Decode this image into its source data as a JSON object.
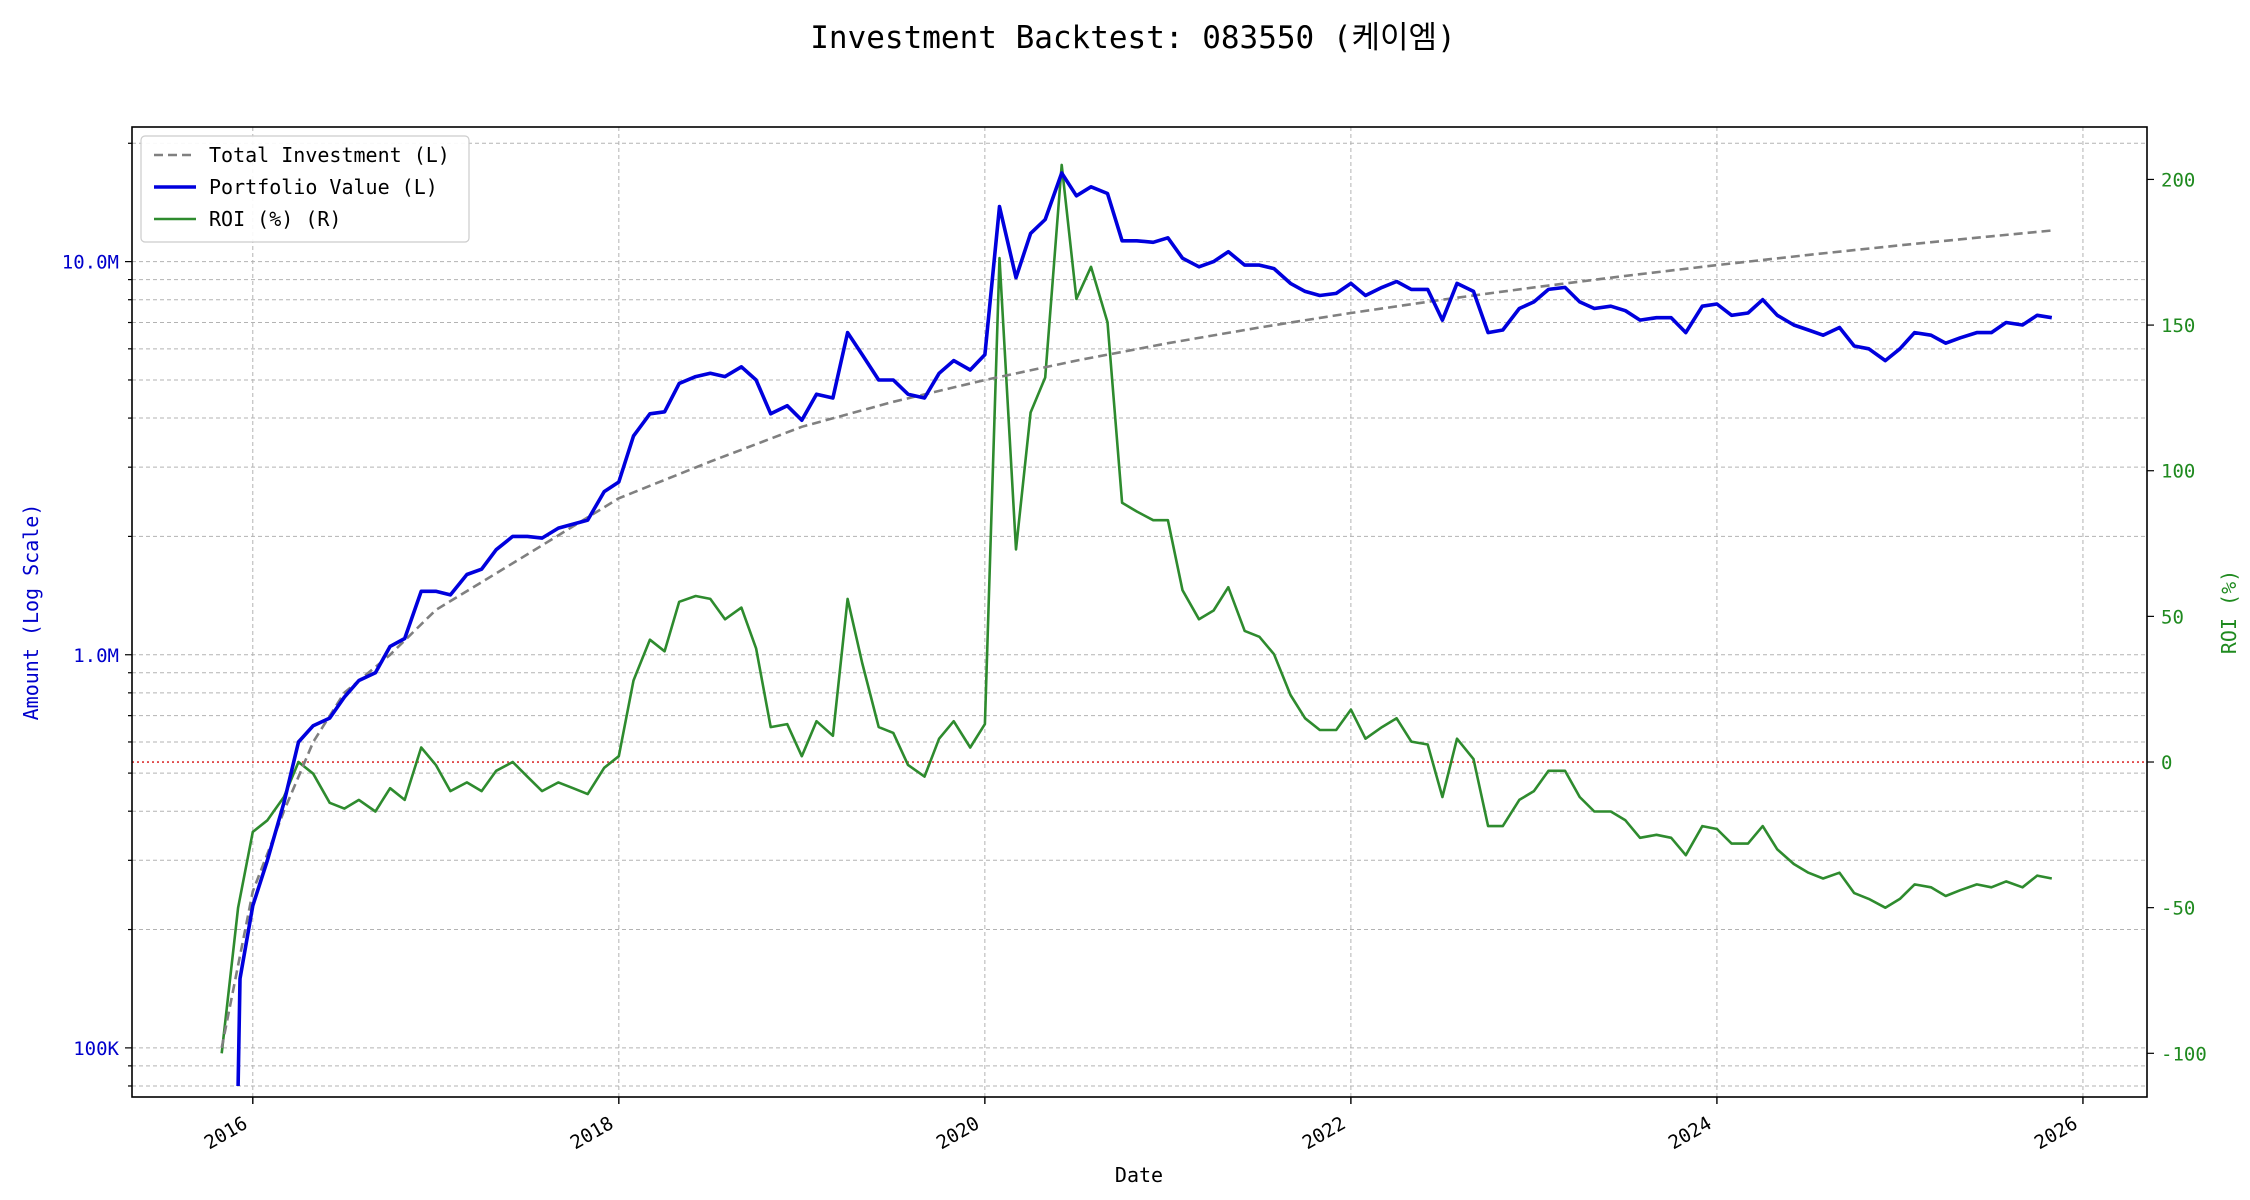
{
  "chart_data": {
    "type": "line",
    "title": "Investment Backtest: 083550 (케이엠)",
    "xlabel": "Date",
    "ylabel_left": "Amount (Log Scale)",
    "ylabel_right": "ROI (%)",
    "x_range": [
      2015.34,
      2026.35
    ],
    "x_ticks": [
      2016,
      2018,
      2020,
      2022,
      2024,
      2026
    ],
    "y_left": {
      "scale": "log",
      "range": [
        75000,
        22000000
      ],
      "ticks": [
        100000,
        1000000,
        10000000
      ],
      "tick_labels": [
        "100K",
        "1.0M",
        "10.0M"
      ]
    },
    "y_right": {
      "scale": "linear",
      "range": [
        -115,
        218
      ],
      "ticks": [
        -100,
        -50,
        0,
        50,
        100,
        150,
        200
      ]
    },
    "zero_line": 0,
    "grid": true,
    "legend_position": "top-left",
    "colors": {
      "total_investment": "#808080",
      "portfolio": "#0000dd",
      "roi": "#2e8b2e",
      "zero_line": "#dd3333"
    },
    "series": [
      {
        "key": "total_investment",
        "name": "Total Investment (L)",
        "axis": "left",
        "style": "dashed",
        "points": [
          [
            2015.83,
            100000
          ],
          [
            2016.0,
            250000
          ],
          [
            2016.17,
            400000
          ],
          [
            2016.33,
            600000
          ],
          [
            2016.5,
            800000
          ],
          [
            2016.75,
            1000000
          ],
          [
            2017.0,
            1300000
          ],
          [
            2017.5,
            1800000
          ],
          [
            2018.0,
            2500000
          ],
          [
            2018.5,
            3100000
          ],
          [
            2019.0,
            3800000
          ],
          [
            2019.5,
            4400000
          ],
          [
            2020.0,
            5000000
          ],
          [
            2020.5,
            5600000
          ],
          [
            2021.0,
            6200000
          ],
          [
            2021.5,
            6800000
          ],
          [
            2022.0,
            7400000
          ],
          [
            2022.5,
            8000000
          ],
          [
            2023.0,
            8600000
          ],
          [
            2023.5,
            9200000
          ],
          [
            2024.0,
            9800000
          ],
          [
            2024.5,
            10400000
          ],
          [
            2025.0,
            11000000
          ],
          [
            2025.5,
            11600000
          ],
          [
            2025.83,
            12000000
          ]
        ]
      },
      {
        "key": "portfolio",
        "name": "Portfolio Value (L)",
        "axis": "left",
        "style": "solid",
        "points": [
          [
            2015.92,
            80000
          ],
          [
            2015.93,
            150000
          ],
          [
            2016.0,
            230000
          ],
          [
            2016.08,
            300000
          ],
          [
            2016.17,
            420000
          ],
          [
            2016.25,
            600000
          ],
          [
            2016.33,
            660000
          ],
          [
            2016.42,
            690000
          ],
          [
            2016.5,
            780000
          ],
          [
            2016.58,
            860000
          ],
          [
            2016.67,
            900000
          ],
          [
            2016.75,
            1050000
          ],
          [
            2016.83,
            1100000
          ],
          [
            2016.92,
            1450000
          ],
          [
            2017.0,
            1450000
          ],
          [
            2017.08,
            1420000
          ],
          [
            2017.17,
            1600000
          ],
          [
            2017.25,
            1650000
          ],
          [
            2017.33,
            1850000
          ],
          [
            2017.42,
            2000000
          ],
          [
            2017.5,
            2000000
          ],
          [
            2017.58,
            1980000
          ],
          [
            2017.67,
            2100000
          ],
          [
            2017.75,
            2150000
          ],
          [
            2017.83,
            2200000
          ],
          [
            2017.92,
            2600000
          ],
          [
            2018.0,
            2750000
          ],
          [
            2018.08,
            3600000
          ],
          [
            2018.17,
            4100000
          ],
          [
            2018.25,
            4150000
          ],
          [
            2018.33,
            4900000
          ],
          [
            2018.42,
            5100000
          ],
          [
            2018.5,
            5200000
          ],
          [
            2018.58,
            5100000
          ],
          [
            2018.67,
            5400000
          ],
          [
            2018.75,
            5000000
          ],
          [
            2018.83,
            4100000
          ],
          [
            2018.92,
            4300000
          ],
          [
            2019.0,
            3950000
          ],
          [
            2019.08,
            4600000
          ],
          [
            2019.17,
            4500000
          ],
          [
            2019.25,
            6600000
          ],
          [
            2019.33,
            5800000
          ],
          [
            2019.42,
            5000000
          ],
          [
            2019.5,
            5000000
          ],
          [
            2019.58,
            4600000
          ],
          [
            2019.67,
            4500000
          ],
          [
            2019.75,
            5200000
          ],
          [
            2019.83,
            5600000
          ],
          [
            2019.92,
            5300000
          ],
          [
            2020.0,
            5800000
          ],
          [
            2020.08,
            13800000
          ],
          [
            2020.17,
            9100000
          ],
          [
            2020.25,
            11800000
          ],
          [
            2020.33,
            12800000
          ],
          [
            2020.42,
            16800000
          ],
          [
            2020.5,
            14700000
          ],
          [
            2020.58,
            15500000
          ],
          [
            2020.67,
            14900000
          ],
          [
            2020.75,
            11300000
          ],
          [
            2020.83,
            11300000
          ],
          [
            2020.92,
            11200000
          ],
          [
            2021.0,
            11500000
          ],
          [
            2021.08,
            10200000
          ],
          [
            2021.17,
            9700000
          ],
          [
            2021.25,
            10000000
          ],
          [
            2021.33,
            10600000
          ],
          [
            2021.42,
            9800000
          ],
          [
            2021.5,
            9800000
          ],
          [
            2021.58,
            9600000
          ],
          [
            2021.67,
            8800000
          ],
          [
            2021.75,
            8400000
          ],
          [
            2021.83,
            8200000
          ],
          [
            2021.92,
            8300000
          ],
          [
            2022.0,
            8800000
          ],
          [
            2022.08,
            8200000
          ],
          [
            2022.17,
            8600000
          ],
          [
            2022.25,
            8900000
          ],
          [
            2022.33,
            8500000
          ],
          [
            2022.42,
            8500000
          ],
          [
            2022.5,
            7100000
          ],
          [
            2022.58,
            8800000
          ],
          [
            2022.67,
            8400000
          ],
          [
            2022.75,
            6600000
          ],
          [
            2022.83,
            6700000
          ],
          [
            2022.92,
            7600000
          ],
          [
            2023.0,
            7900000
          ],
          [
            2023.08,
            8500000
          ],
          [
            2023.17,
            8600000
          ],
          [
            2023.25,
            7900000
          ],
          [
            2023.33,
            7600000
          ],
          [
            2023.42,
            7700000
          ],
          [
            2023.5,
            7500000
          ],
          [
            2023.58,
            7100000
          ],
          [
            2023.67,
            7200000
          ],
          [
            2023.75,
            7200000
          ],
          [
            2023.83,
            6600000
          ],
          [
            2023.92,
            7700000
          ],
          [
            2024.0,
            7800000
          ],
          [
            2024.08,
            7300000
          ],
          [
            2024.17,
            7400000
          ],
          [
            2024.25,
            8000000
          ],
          [
            2024.33,
            7300000
          ],
          [
            2024.42,
            6900000
          ],
          [
            2024.5,
            6700000
          ],
          [
            2024.58,
            6500000
          ],
          [
            2024.67,
            6800000
          ],
          [
            2024.75,
            6100000
          ],
          [
            2024.83,
            6000000
          ],
          [
            2024.92,
            5600000
          ],
          [
            2025.0,
            6000000
          ],
          [
            2025.08,
            6600000
          ],
          [
            2025.17,
            6500000
          ],
          [
            2025.25,
            6200000
          ],
          [
            2025.33,
            6400000
          ],
          [
            2025.42,
            6600000
          ],
          [
            2025.5,
            6600000
          ],
          [
            2025.58,
            7000000
          ],
          [
            2025.67,
            6900000
          ],
          [
            2025.75,
            7300000
          ],
          [
            2025.83,
            7200000
          ]
        ]
      },
      {
        "key": "roi",
        "name": "ROI (%) (R)",
        "axis": "right",
        "style": "solid",
        "points": [
          [
            2015.83,
            -100
          ],
          [
            2015.92,
            -50
          ],
          [
            2016.0,
            -24
          ],
          [
            2016.08,
            -20
          ],
          [
            2016.17,
            -12
          ],
          [
            2016.25,
            0
          ],
          [
            2016.33,
            -4
          ],
          [
            2016.42,
            -14
          ],
          [
            2016.5,
            -16
          ],
          [
            2016.58,
            -13
          ],
          [
            2016.67,
            -17
          ],
          [
            2016.75,
            -9
          ],
          [
            2016.83,
            -13
          ],
          [
            2016.92,
            5
          ],
          [
            2017.0,
            -1
          ],
          [
            2017.08,
            -10
          ],
          [
            2017.17,
            -7
          ],
          [
            2017.25,
            -10
          ],
          [
            2017.33,
            -3
          ],
          [
            2017.42,
            0
          ],
          [
            2017.5,
            -5
          ],
          [
            2017.58,
            -10
          ],
          [
            2017.67,
            -7
          ],
          [
            2017.75,
            -9
          ],
          [
            2017.83,
            -11
          ],
          [
            2017.92,
            -2
          ],
          [
            2018.0,
            2
          ],
          [
            2018.08,
            28
          ],
          [
            2018.17,
            42
          ],
          [
            2018.25,
            38
          ],
          [
            2018.33,
            55
          ],
          [
            2018.42,
            57
          ],
          [
            2018.5,
            56
          ],
          [
            2018.58,
            49
          ],
          [
            2018.67,
            53
          ],
          [
            2018.75,
            39
          ],
          [
            2018.83,
            12
          ],
          [
            2018.92,
            13
          ],
          [
            2019.0,
            2
          ],
          [
            2019.08,
            14
          ],
          [
            2019.17,
            9
          ],
          [
            2019.25,
            56
          ],
          [
            2019.33,
            34
          ],
          [
            2019.42,
            12
          ],
          [
            2019.5,
            10
          ],
          [
            2019.58,
            -1
          ],
          [
            2019.67,
            -5
          ],
          [
            2019.75,
            8
          ],
          [
            2019.83,
            14
          ],
          [
            2019.92,
            5
          ],
          [
            2020.0,
            13
          ],
          [
            2020.08,
            173
          ],
          [
            2020.17,
            73
          ],
          [
            2020.25,
            120
          ],
          [
            2020.33,
            132
          ],
          [
            2020.42,
            205
          ],
          [
            2020.5,
            159
          ],
          [
            2020.58,
            170
          ],
          [
            2020.67,
            151
          ],
          [
            2020.75,
            89
          ],
          [
            2020.83,
            86
          ],
          [
            2020.92,
            83
          ],
          [
            2021.0,
            83
          ],
          [
            2021.08,
            59
          ],
          [
            2021.17,
            49
          ],
          [
            2021.25,
            52
          ],
          [
            2021.33,
            60
          ],
          [
            2021.42,
            45
          ],
          [
            2021.5,
            43
          ],
          [
            2021.58,
            37
          ],
          [
            2021.67,
            23
          ],
          [
            2021.75,
            15
          ],
          [
            2021.83,
            11
          ],
          [
            2021.92,
            11
          ],
          [
            2022.0,
            18
          ],
          [
            2022.08,
            8
          ],
          [
            2022.17,
            12
          ],
          [
            2022.25,
            15
          ],
          [
            2022.33,
            7
          ],
          [
            2022.42,
            6
          ],
          [
            2022.5,
            -12
          ],
          [
            2022.58,
            8
          ],
          [
            2022.67,
            1
          ],
          [
            2022.75,
            -22
          ],
          [
            2022.83,
            -22
          ],
          [
            2022.92,
            -13
          ],
          [
            2023.0,
            -10
          ],
          [
            2023.08,
            -3
          ],
          [
            2023.17,
            -3
          ],
          [
            2023.25,
            -12
          ],
          [
            2023.33,
            -17
          ],
          [
            2023.42,
            -17
          ],
          [
            2023.5,
            -20
          ],
          [
            2023.58,
            -26
          ],
          [
            2023.67,
            -25
          ],
          [
            2023.75,
            -26
          ],
          [
            2023.83,
            -32
          ],
          [
            2023.92,
            -22
          ],
          [
            2024.0,
            -23
          ],
          [
            2024.08,
            -28
          ],
          [
            2024.17,
            -28
          ],
          [
            2024.25,
            -22
          ],
          [
            2024.33,
            -30
          ],
          [
            2024.42,
            -35
          ],
          [
            2024.5,
            -38
          ],
          [
            2024.58,
            -40
          ],
          [
            2024.67,
            -38
          ],
          [
            2024.75,
            -45
          ],
          [
            2024.83,
            -47
          ],
          [
            2024.92,
            -50
          ],
          [
            2025.0,
            -47
          ],
          [
            2025.08,
            -42
          ],
          [
            2025.17,
            -43
          ],
          [
            2025.25,
            -46
          ],
          [
            2025.33,
            -44
          ],
          [
            2025.42,
            -42
          ],
          [
            2025.5,
            -43
          ],
          [
            2025.58,
            -41
          ],
          [
            2025.67,
            -43
          ],
          [
            2025.75,
            -39
          ],
          [
            2025.83,
            -40
          ]
        ]
      }
    ]
  }
}
